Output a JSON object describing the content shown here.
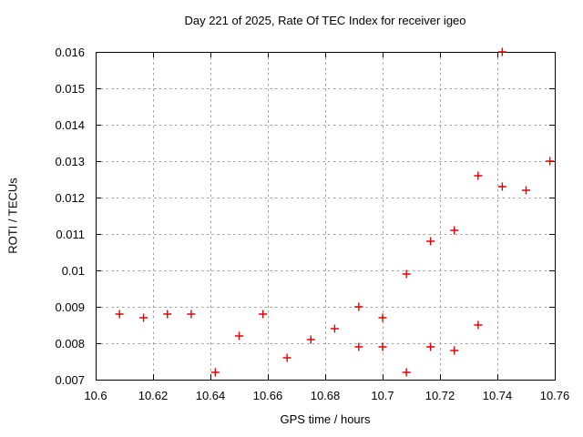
{
  "chart_data": {
    "type": "scatter",
    "title": "Day 221 of 2025, Rate Of TEC Index for receiver igeo",
    "xlabel": "GPS time / hours",
    "ylabel": "ROTI / TECUs",
    "xlim": [
      10.6,
      10.76
    ],
    "ylim": [
      0.007,
      0.016
    ],
    "grid": true,
    "legend": "none",
    "x_ticks": {
      "values": [
        10.6,
        10.62,
        10.64,
        10.66,
        10.68,
        10.7,
        10.72,
        10.74,
        10.76
      ],
      "labels": [
        "10.6",
        "10.62",
        "10.64",
        "10.66",
        "10.68",
        "10.7",
        "10.72",
        "10.74",
        "10.76"
      ]
    },
    "y_ticks": {
      "values": [
        0.007,
        0.008,
        0.009,
        0.01,
        0.011,
        0.012,
        0.013,
        0.014,
        0.015,
        0.016
      ],
      "labels": [
        "0.007",
        "0.008",
        "0.009",
        "0.01",
        "0.011",
        "0.012",
        "0.013",
        "0.014",
        "0.015",
        "0.016"
      ]
    },
    "series": [
      {
        "name": "ROTI",
        "marker": "plus",
        "points": [
          [
            10.6083,
            0.0088
          ],
          [
            10.6167,
            0.0087
          ],
          [
            10.625,
            0.0088
          ],
          [
            10.6333,
            0.0088
          ],
          [
            10.6417,
            0.0072
          ],
          [
            10.65,
            0.0082
          ],
          [
            10.6583,
            0.0088
          ],
          [
            10.6667,
            0.0076
          ],
          [
            10.675,
            0.0081
          ],
          [
            10.6833,
            0.0084
          ],
          [
            10.6917,
            0.009
          ],
          [
            10.6917,
            0.0079
          ],
          [
            10.7,
            0.0087
          ],
          [
            10.7,
            0.0079
          ],
          [
            10.7083,
            0.0099
          ],
          [
            10.7083,
            0.0072
          ],
          [
            10.7167,
            0.0108
          ],
          [
            10.7167,
            0.0079
          ],
          [
            10.725,
            0.0111
          ],
          [
            10.725,
            0.0078
          ],
          [
            10.7333,
            0.0126
          ],
          [
            10.7333,
            0.0085
          ],
          [
            10.7417,
            0.016
          ],
          [
            10.7417,
            0.0123
          ],
          [
            10.75,
            0.0122
          ],
          [
            10.7583,
            0.013
          ]
        ]
      }
    ],
    "colors": {
      "marker": "#e60000",
      "grid": "#a0a0a0",
      "axis": "#000000",
      "background": "#ffffff",
      "text": "#000000"
    }
  }
}
